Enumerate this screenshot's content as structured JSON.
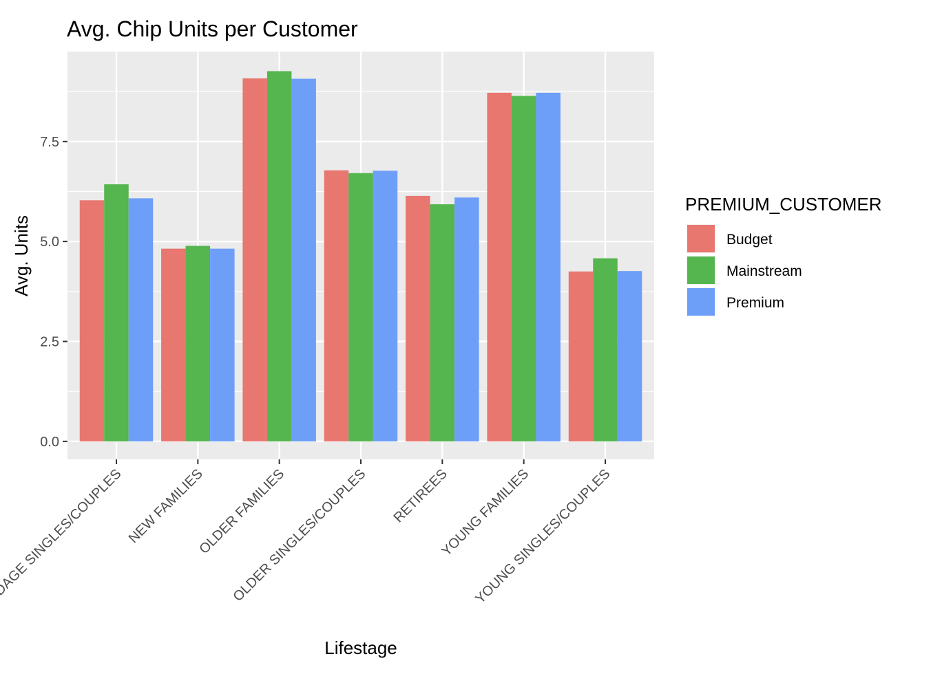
{
  "chart_data": {
    "type": "bar",
    "title": "Avg. Chip Units per Customer",
    "xlabel": "Lifestage",
    "ylabel": "Avg. Units",
    "categories": [
      "MIDAGE SINGLES/COUPLES",
      "NEW FAMILIES",
      "OLDER FAMILIES",
      "OLDER SINGLES/COUPLES",
      "RETIREES",
      "YOUNG FAMILIES",
      "YOUNG SINGLES/COUPLES"
    ],
    "series": [
      {
        "name": "Budget",
        "color": "#E7776F",
        "values": [
          6.03,
          4.82,
          9.08,
          6.78,
          6.14,
          8.72,
          4.25
        ]
      },
      {
        "name": "Mainstream",
        "color": "#55B54E",
        "values": [
          6.43,
          4.89,
          9.26,
          6.71,
          5.93,
          8.64,
          4.58
        ]
      },
      {
        "name": "Premium",
        "color": "#6D9EF8",
        "values": [
          6.08,
          4.82,
          9.07,
          6.77,
          6.1,
          8.72,
          4.26
        ]
      }
    ],
    "ylim": [
      -0.45,
      9.75
    ],
    "yticks": [
      0.0,
      2.5,
      5.0,
      7.5
    ],
    "ytick_labels": [
      "0.0",
      "2.5",
      "5.0",
      "7.5"
    ],
    "legend": {
      "title": "PREMIUM_CUSTOMER",
      "position": "right"
    },
    "grid": true,
    "panel_background": "#EBEBEB",
    "grid_color": "#FFFFFF"
  }
}
